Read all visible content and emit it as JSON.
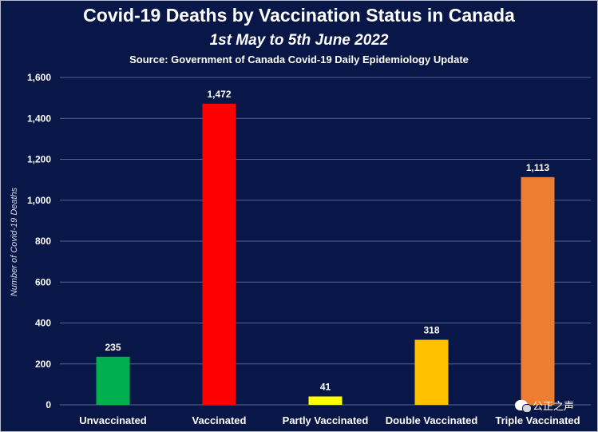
{
  "chart_data": {
    "type": "bar",
    "title": "Covid-19 Deaths by Vaccination Status in Canada",
    "subtitle": "1st May to 5th June 2022",
    "source": "Source: Government of Canada Covid-19 Daily Epidemiology Update",
    "ylabel": "Number of Covid-19 Deaths",
    "xlabel": "",
    "categories": [
      "Unvaccinated",
      "Vaccinated",
      "Partly Vaccinated",
      "Double Vaccinated",
      "Triple Vaccinated"
    ],
    "values": [
      235,
      1472,
      41,
      318,
      1113
    ],
    "data_labels": [
      "235",
      "1,472",
      "41",
      "318",
      "1,113"
    ],
    "colors": [
      "#00b050",
      "#ff0000",
      "#ffff00",
      "#ffc000",
      "#ed7d31"
    ],
    "ylim": [
      0,
      1600
    ],
    "yticks": [
      0,
      200,
      400,
      600,
      800,
      1000,
      1200,
      1400,
      1600
    ],
    "ytick_labels": [
      "0",
      "200",
      "400",
      "600",
      "800",
      "1,000",
      "1,200",
      "1,400",
      "1,600"
    ],
    "grid": true,
    "legend": "none"
  },
  "watermark": {
    "text": "公正之声",
    "icon": "wechat-icon"
  }
}
